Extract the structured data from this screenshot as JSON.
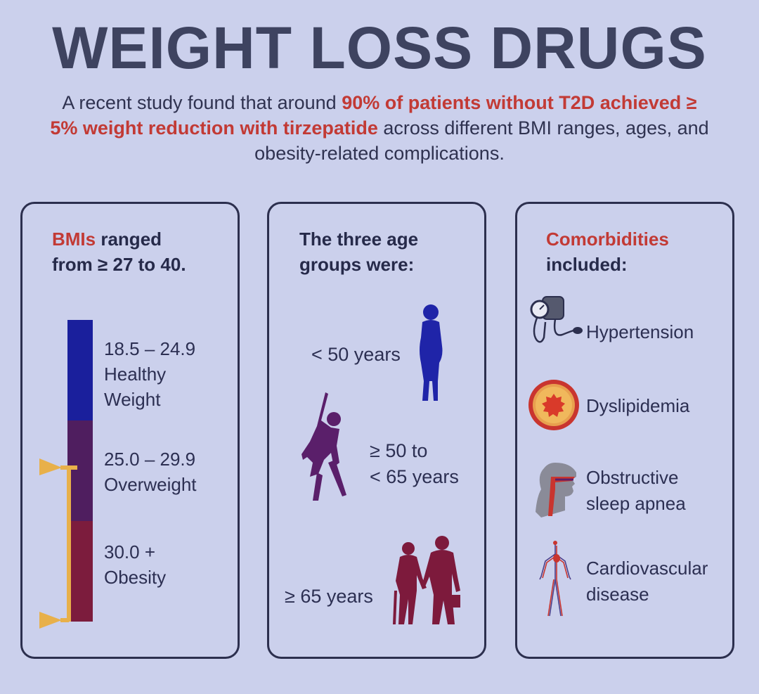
{
  "title": "WEIGHT LOSS DRUGS",
  "intro": {
    "part1": "A recent study found that around ",
    "highlight": "90% of patients without T2D achieved ≥ 5% weight reduction with tirzepatide",
    "part2": " across different BMI ranges, ages, and obesity-related complications."
  },
  "bmi": {
    "heading_red": "BMIs",
    "heading_rest_line1": " ranged",
    "heading_line2": "from ≥ 27 to 40.",
    "segments": [
      {
        "range": "18.5 – 24.9",
        "label_line1": "Healthy",
        "label_line2": "Weight",
        "color": "#1a1f9c"
      },
      {
        "range": "25.0 – 29.9",
        "label_line1": "Overweight",
        "color": "#4f1e5f"
      },
      {
        "range": "30.0 +",
        "label_line1": "Obesity",
        "color": "#7c1c3d"
      }
    ],
    "marker_color": "#e8b04a"
  },
  "age": {
    "heading_line1": "The three age",
    "heading_line2": "groups were:",
    "groups": [
      {
        "line1": "< 50 years",
        "color": "#1f24a8"
      },
      {
        "line1": "≥ 50 to",
        "line2": "< 65 years",
        "color": "#5a1f6a"
      },
      {
        "line1": "≥ 65 years",
        "color": "#7d1a3c"
      }
    ]
  },
  "comorbidities": {
    "heading_red": "Comorbidities",
    "heading_line2": "included:",
    "items": [
      {
        "line1": "Hypertension",
        "icon": "blood-pressure-cuff-icon"
      },
      {
        "line1": "Dyslipidemia",
        "icon": "artery-plaque-icon"
      },
      {
        "line1": "Obstructive",
        "line2": "sleep apnea",
        "icon": "head-airway-icon"
      },
      {
        "line1": "Cardiovascular",
        "line2": "disease",
        "icon": "circulatory-system-icon"
      }
    ]
  }
}
